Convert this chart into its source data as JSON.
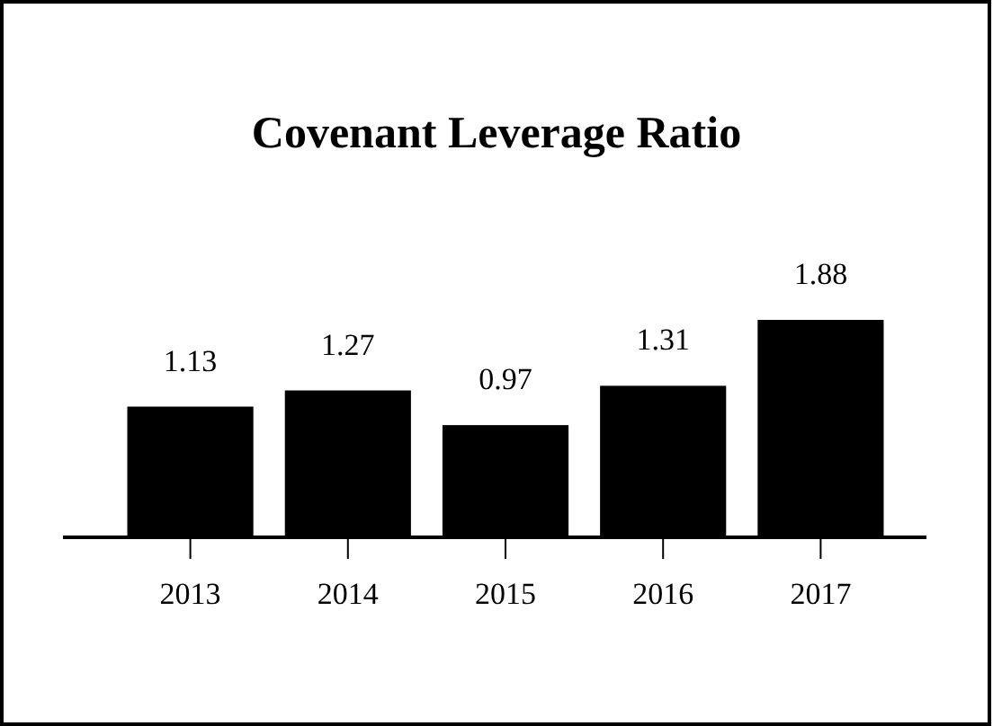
{
  "chart_data": {
    "type": "bar",
    "title": "Covenant Leverage Ratio",
    "categories": [
      "2013",
      "2014",
      "2015",
      "2016",
      "2017"
    ],
    "values": [
      1.13,
      1.27,
      0.97,
      1.31,
      1.88
    ],
    "color": "#000000",
    "data_labels": true
  }
}
